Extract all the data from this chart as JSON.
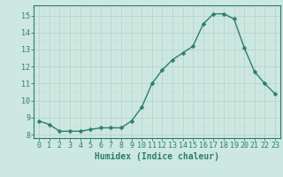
{
  "x": [
    0,
    1,
    2,
    3,
    4,
    5,
    6,
    7,
    8,
    9,
    10,
    11,
    12,
    13,
    14,
    15,
    16,
    17,
    18,
    19,
    20,
    21,
    22,
    23
  ],
  "y": [
    8.8,
    8.6,
    8.2,
    8.2,
    8.2,
    8.3,
    8.4,
    8.4,
    8.4,
    8.8,
    9.6,
    11.0,
    11.8,
    12.4,
    12.8,
    13.2,
    14.5,
    15.1,
    15.1,
    14.8,
    13.1,
    11.7,
    11.0,
    10.4
  ],
  "line_color": "#2e7d6e",
  "marker": "D",
  "marker_size": 2.5,
  "bg_color": "#cce8e0",
  "grid_color_major": "#b8d4cc",
  "grid_color_minor": "#c8dcd6",
  "xlabel": "Humidex (Indice chaleur)",
  "xlim": [
    -0.5,
    23.5
  ],
  "ylim": [
    7.8,
    15.6
  ],
  "yticks": [
    8,
    9,
    10,
    11,
    12,
    13,
    14,
    15
  ],
  "xticks": [
    0,
    1,
    2,
    3,
    4,
    5,
    6,
    7,
    8,
    9,
    10,
    11,
    12,
    13,
    14,
    15,
    16,
    17,
    18,
    19,
    20,
    21,
    22,
    23
  ],
  "tick_font_size": 6,
  "label_font_size": 7
}
